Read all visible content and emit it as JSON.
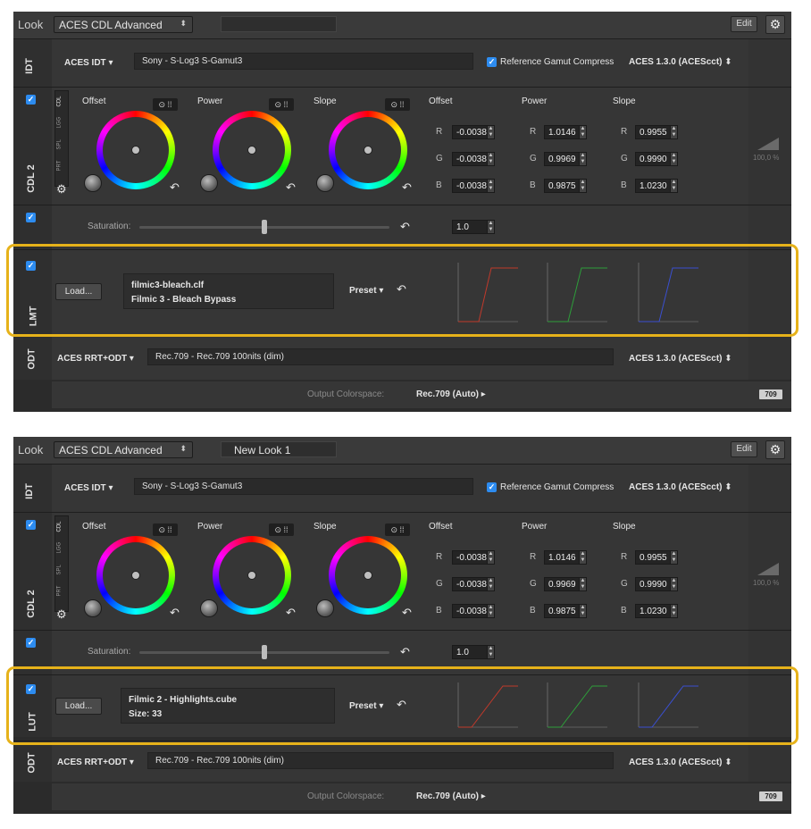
{
  "panels": [
    {
      "look": {
        "label": "Look",
        "preset": "ACES CDL Advanced",
        "name": "",
        "edit": "Edit"
      },
      "idt": {
        "label": "IDT",
        "type": "ACES IDT",
        "value": "Sony - S-Log3 S-Gamut3",
        "gamut_compress": "Reference Gamut Compress",
        "version": "ACES 1.3.0 (ACEScct)"
      },
      "cdl": {
        "label": "CDL 2",
        "tabs": [
          "CDL",
          "LGG",
          "SPL",
          "PRT"
        ],
        "wheels": [
          "Offset",
          "Power",
          "Slope"
        ],
        "cols": [
          {
            "title": "Offset",
            "r": "-0.0038",
            "g": "-0.0038",
            "b": "-0.0038"
          },
          {
            "title": "Power",
            "r": "1.0146",
            "g": "0.9969",
            "b": "0.9875"
          },
          {
            "title": "Slope",
            "r": "0.9955",
            "g": "0.9990",
            "b": "1.0230"
          }
        ],
        "channels": [
          "R",
          "G",
          "B"
        ],
        "percent": "100,0 %"
      },
      "sat": {
        "label": "Saturation:",
        "value": "1.0"
      },
      "lut": {
        "label": "LMT",
        "load": "Load...",
        "line1": "filmic3-bleach.clf",
        "line2": "Filmic 3 - Bleach Bypass",
        "preset": "Preset"
      },
      "odt": {
        "label": "ODT",
        "type": "ACES RRT+ODT",
        "value": "Rec.709 - Rec.709 100nits (dim)",
        "version": "ACES 1.3.0 (ACEScct)"
      },
      "out": {
        "label": "Output Colorspace:",
        "value": "Rec.709 (Auto)",
        "badge": "709"
      }
    },
    {
      "look": {
        "label": "Look",
        "preset": "ACES CDL Advanced",
        "name": "New Look 1",
        "edit": "Edit"
      },
      "idt": {
        "label": "IDT",
        "type": "ACES IDT",
        "value": "Sony - S-Log3 S-Gamut3",
        "gamut_compress": "Reference Gamut Compress",
        "version": "ACES 1.3.0 (ACEScct)"
      },
      "cdl": {
        "label": "CDL 2",
        "tabs": [
          "CDL",
          "LGG",
          "SPL",
          "PRT"
        ],
        "wheels": [
          "Offset",
          "Power",
          "Slope"
        ],
        "cols": [
          {
            "title": "Offset",
            "r": "-0.0038",
            "g": "-0.0038",
            "b": "-0.0038"
          },
          {
            "title": "Power",
            "r": "1.0146",
            "g": "0.9969",
            "b": "0.9875"
          },
          {
            "title": "Slope",
            "r": "0.9955",
            "g": "0.9990",
            "b": "1.0230"
          }
        ],
        "channels": [
          "R",
          "G",
          "B"
        ],
        "percent": "100,0 %"
      },
      "sat": {
        "label": "Saturation:",
        "value": "1.0"
      },
      "lut": {
        "label": "LUT",
        "load": "Load...",
        "line1": "Filmic 2 - Highlights.cube",
        "line2": "Size: 33",
        "preset": "Preset"
      },
      "odt": {
        "label": "ODT",
        "type": "ACES RRT+ODT",
        "value": "Rec.709 - Rec.709 100nits (dim)",
        "version": "ACES 1.3.0 (ACEScct)"
      },
      "out": {
        "label": "Output Colorspace:",
        "value": "Rec.709 (Auto)",
        "badge": "709"
      }
    }
  ],
  "colors": {
    "highlight": "#e6b21a",
    "checkbox": "#2d8cf0",
    "curve_r": "#c0392b",
    "curve_g": "#2e9e3a",
    "curve_b": "#3a4fd0"
  },
  "icons": {
    "gear": "gear-icon",
    "reset": "reset-arrow-icon",
    "check": "checkbox-icon"
  }
}
